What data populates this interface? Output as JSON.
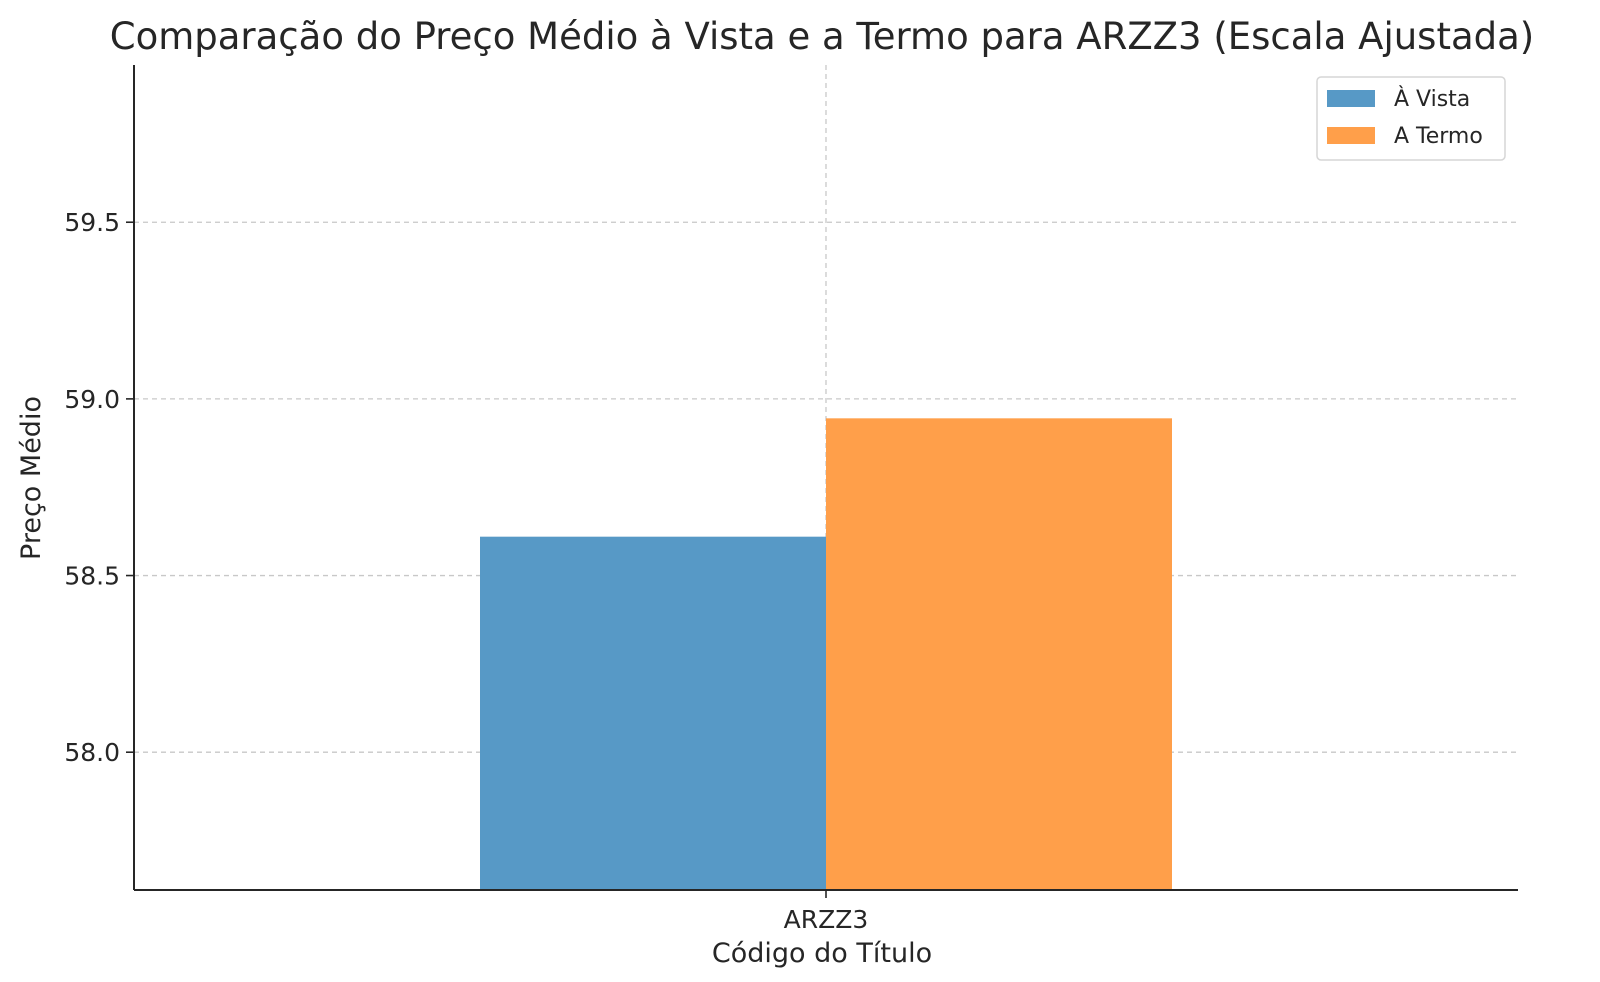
{
  "chart_data": {
    "type": "bar",
    "title": "Comparação do Preço Médio à Vista e a Termo para ARZZ3 (Escala Ajustada)",
    "xlabel": "Código do Título",
    "ylabel": "Preço Médio",
    "categories": [
      "ARZZ3"
    ],
    "series": [
      {
        "name": "À Vista",
        "values": [
          58.61
        ],
        "color": "#5799c6"
      },
      {
        "name": "A Termo",
        "values": [
          58.945
        ],
        "color": "#ff9f4a"
      }
    ],
    "ylim": [
      57.61,
      59.945
    ],
    "yticks": [
      58.0,
      58.5,
      59.0,
      59.5
    ],
    "ytick_labels": [
      "58.0",
      "58.5",
      "59.0",
      "59.5"
    ],
    "grid": true,
    "legend_position": "top-right"
  }
}
